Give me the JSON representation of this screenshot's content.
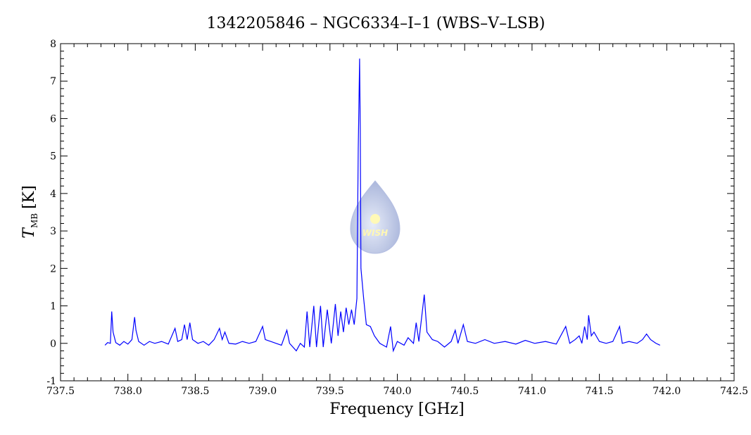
{
  "chart_data": {
    "type": "line",
    "title": "1342205846 – NGC6334–I–1 (WBS–V–LSB)",
    "xlabel": "Frequency [GHz]",
    "ylabel": "T",
    "ylabel_subscript": "MB",
    "ylabel_unit": "[K]",
    "logo_text": "WISH",
    "xlim": [
      737.5,
      742.5
    ],
    "ylim": [
      -1,
      8
    ],
    "xticks": [
      737.5,
      {
        "value": 738,
        "label": "738.0"
      },
      738.5,
      {
        "value": 739,
        "label": "739.0"
      },
      739.5,
      {
        "value": 740,
        "label": "740.0"
      },
      740.5,
      {
        "value": 741,
        "label": "741.0"
      },
      741.5,
      {
        "value": 742,
        "label": "742.0"
      },
      742.5
    ],
    "yticks": [
      -1,
      0,
      1,
      2,
      3,
      4,
      5,
      6,
      7,
      8
    ],
    "x": [
      737.83,
      737.85,
      737.87,
      737.88,
      737.89,
      737.91,
      737.94,
      737.97,
      738.0,
      738.03,
      738.05,
      738.06,
      738.08,
      738.12,
      738.16,
      738.2,
      738.25,
      738.3,
      738.35,
      738.37,
      738.4,
      738.42,
      738.44,
      738.46,
      738.48,
      738.52,
      738.56,
      738.6,
      738.64,
      738.68,
      738.7,
      738.72,
      738.75,
      738.8,
      738.85,
      738.9,
      738.95,
      739.0,
      739.02,
      739.06,
      739.1,
      739.14,
      739.18,
      739.2,
      739.25,
      739.28,
      739.31,
      739.33,
      739.35,
      739.38,
      739.4,
      739.43,
      739.45,
      739.48,
      739.51,
      739.54,
      739.56,
      739.58,
      739.6,
      739.62,
      739.64,
      739.66,
      739.68,
      739.7,
      739.71,
      739.72,
      739.725,
      739.73,
      739.75,
      739.77,
      739.8,
      739.83,
      739.87,
      739.92,
      739.95,
      739.97,
      740.0,
      740.05,
      740.08,
      740.12,
      740.14,
      740.16,
      740.2,
      740.22,
      740.26,
      740.3,
      740.35,
      740.4,
      740.43,
      740.45,
      740.49,
      740.52,
      740.58,
      740.65,
      740.72,
      740.8,
      740.88,
      740.95,
      741.02,
      741.1,
      741.18,
      741.25,
      741.28,
      741.32,
      741.35,
      741.37,
      741.39,
      741.41,
      741.42,
      741.44,
      741.46,
      741.5,
      741.55,
      741.6,
      741.65,
      741.67,
      741.72,
      741.78,
      741.82,
      741.85,
      741.88,
      741.92,
      741.95
    ],
    "series": [
      {
        "color": "#0000ff",
        "values": [
          -0.05,
          0.02,
          0.0,
          0.85,
          0.3,
          0.02,
          -0.05,
          0.05,
          -0.02,
          0.1,
          0.7,
          0.35,
          0.05,
          -0.05,
          0.05,
          0.0,
          0.05,
          -0.02,
          0.4,
          0.05,
          0.1,
          0.5,
          0.1,
          0.55,
          0.1,
          0.0,
          0.05,
          -0.05,
          0.1,
          0.4,
          0.1,
          0.3,
          0.0,
          -0.02,
          0.05,
          0.0,
          0.05,
          0.45,
          0.1,
          0.05,
          0.0,
          -0.05,
          0.35,
          0.0,
          -0.2,
          0.0,
          -0.1,
          0.85,
          -0.1,
          1.0,
          -0.1,
          1.0,
          -0.1,
          0.9,
          0.0,
          1.05,
          0.2,
          0.85,
          0.3,
          0.95,
          0.5,
          0.9,
          0.5,
          1.2,
          5.2,
          7.6,
          5.7,
          2.0,
          1.2,
          0.5,
          0.45,
          0.2,
          0.0,
          -0.1,
          0.45,
          -0.2,
          0.05,
          -0.05,
          0.15,
          0.0,
          0.55,
          0.05,
          1.3,
          0.3,
          0.1,
          0.05,
          -0.1,
          0.05,
          0.35,
          0.0,
          0.5,
          0.05,
          0.0,
          0.1,
          0.0,
          0.05,
          -0.02,
          0.08,
          0.0,
          0.05,
          -0.02,
          0.45,
          0.0,
          0.1,
          0.2,
          0.0,
          0.45,
          0.1,
          0.75,
          0.2,
          0.3,
          0.05,
          0.0,
          0.05,
          0.45,
          0.0,
          0.05,
          0.0,
          0.1,
          0.25,
          0.1,
          0.0,
          -0.05
        ]
      }
    ]
  }
}
